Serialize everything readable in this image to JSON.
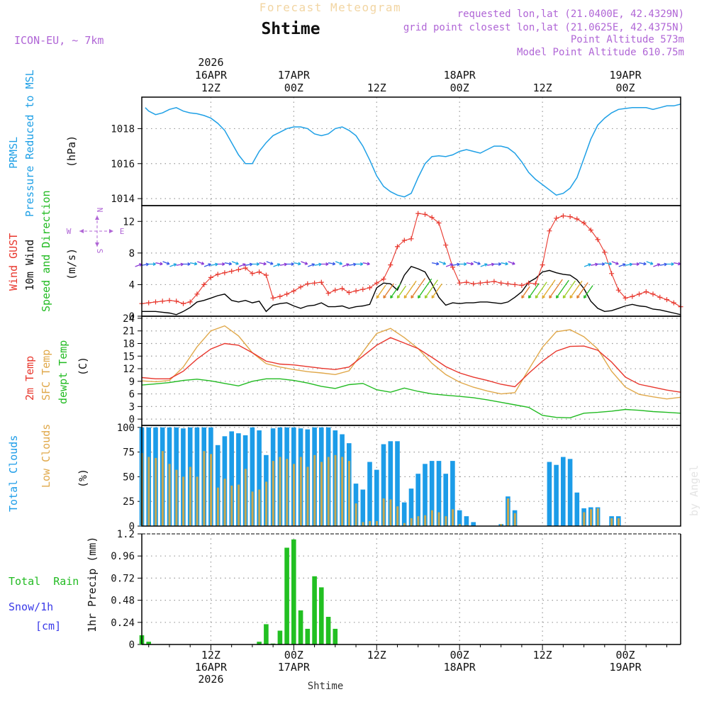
{
  "header": {
    "product_title": "Forecast Meteogram",
    "location": "Shtime",
    "model": "ICON-EU, ~ 7km",
    "requested": "requested lon,lat (21.0400E, 42.4329N)",
    "grid_point": "grid point closest lon,lat (21.0625E, 42.4375N)",
    "point_altitude": "Point Altitude 573m",
    "model_altitude": "Model Point Altitude 610.75m",
    "credit": "by Angel",
    "x_title": "Shtime"
  },
  "colors": {
    "pressure": "#1fa0e6",
    "gust": "#e8362c",
    "wind": "#000000",
    "t2m": "#e8362c",
    "sfc": "#e0a84a",
    "dewpt": "#22bb22",
    "total_cloud": "#1c9ce8",
    "low_cloud": "#c8a850",
    "rain": "#22c022",
    "snow": "#3a3ae8",
    "purple": "#b066d6"
  },
  "chart_data": {
    "type": "meteogram",
    "time_axis": {
      "unit": "hours since 2026-04-16 00Z",
      "range": [
        2,
        80
      ],
      "top_labels": [
        {
          "t": 12,
          "lines": [
            "2026",
            "16APR",
            "12Z"
          ]
        },
        {
          "t": 24,
          "lines": [
            "17APR",
            "00Z"
          ]
        },
        {
          "t": 36,
          "lines": [
            "12Z"
          ]
        },
        {
          "t": 48,
          "lines": [
            "18APR",
            "00Z"
          ]
        },
        {
          "t": 60,
          "lines": [
            "12Z"
          ]
        },
        {
          "t": 72,
          "lines": [
            "19APR",
            "00Z"
          ]
        }
      ],
      "bottom_labels": [
        {
          "t": 12,
          "lines": [
            "12Z",
            "16APR",
            "2026"
          ]
        },
        {
          "t": 24,
          "lines": [
            "00Z",
            "17APR"
          ]
        },
        {
          "t": 36,
          "lines": [
            "12Z"
          ]
        },
        {
          "t": 48,
          "lines": [
            "00Z",
            "18APR"
          ]
        },
        {
          "t": 60,
          "lines": [
            "12Z"
          ]
        },
        {
          "t": 72,
          "lines": [
            "00Z",
            "19APR"
          ]
        }
      ]
    },
    "panels": {
      "pressure": {
        "labels": [
          "PRMSL",
          "Pressure Reduced to MSL"
        ],
        "unit": "(hPa)",
        "ylim": [
          1013.6,
          1019.8
        ],
        "ticks": [
          1014,
          1016,
          1018
        ],
        "series": {
          "name": "PRMSL",
          "t": [
            2.5,
            3,
            4,
            5,
            6,
            7,
            8,
            9,
            10,
            11,
            12,
            13,
            14,
            15,
            16,
            17,
            18,
            19,
            20,
            21,
            22,
            23,
            24,
            25,
            26,
            27,
            28,
            29,
            30,
            31,
            32,
            33,
            34,
            35,
            36,
            37,
            38,
            39,
            40,
            41,
            42,
            43,
            44,
            45,
            46,
            47,
            48,
            49,
            50,
            51,
            52,
            53,
            54,
            55,
            56,
            57,
            58,
            59,
            60,
            61,
            62,
            63,
            64,
            65,
            66,
            67,
            68,
            69,
            70,
            71,
            72,
            73,
            74,
            75,
            76,
            77,
            78,
            79,
            80
          ],
          "values": [
            1019.2,
            1019.0,
            1018.8,
            1018.9,
            1019.1,
            1019.2,
            1019.0,
            1018.9,
            1018.85,
            1018.75,
            1018.6,
            1018.3,
            1017.9,
            1017.2,
            1016.5,
            1016.0,
            1016.0,
            1016.7,
            1017.2,
            1017.6,
            1017.8,
            1018.0,
            1018.1,
            1018.1,
            1018.0,
            1017.7,
            1017.6,
            1017.7,
            1018.0,
            1018.1,
            1017.9,
            1017.6,
            1017.0,
            1016.2,
            1015.3,
            1014.7,
            1014.4,
            1014.2,
            1014.1,
            1014.3,
            1015.2,
            1016.0,
            1016.4,
            1016.45,
            1016.4,
            1016.5,
            1016.7,
            1016.8,
            1016.7,
            1016.6,
            1016.8,
            1017.0,
            1017.0,
            1016.9,
            1016.6,
            1016.1,
            1015.5,
            1015.1,
            1014.8,
            1014.5,
            1014.2,
            1014.3,
            1014.6,
            1015.2,
            1016.3,
            1017.4,
            1018.2,
            1018.6,
            1018.9,
            1019.1,
            1019.15,
            1019.2,
            1019.2,
            1019.2,
            1019.1,
            1019.2,
            1019.3,
            1019.3,
            1019.4
          ]
        }
      },
      "wind": {
        "labels": [
          "Wind GUST",
          "10m Wind",
          "Speed and Direction"
        ],
        "unit": "(m/s)",
        "ylim": [
          0,
          14
        ],
        "ticks": [
          0,
          4,
          8,
          12
        ],
        "compass": {
          "n": "N",
          "s": "S",
          "e": "E",
          "w": "W"
        },
        "t": [
          2,
          3,
          4,
          5,
          6,
          7,
          8,
          9,
          10,
          11,
          12,
          13,
          14,
          15,
          16,
          17,
          18,
          19,
          20,
          21,
          22,
          23,
          24,
          25,
          26,
          27,
          28,
          29,
          30,
          31,
          32,
          33,
          34,
          35,
          36,
          37,
          38,
          39,
          40,
          41,
          42,
          43,
          44,
          45,
          46,
          47,
          48,
          49,
          50,
          51,
          52,
          53,
          54,
          55,
          56,
          57,
          58,
          59,
          60,
          61,
          62,
          63,
          64,
          65,
          66,
          67,
          68,
          69,
          70,
          71,
          72,
          73,
          74,
          75,
          76,
          77,
          78,
          79,
          80
        ],
        "gust": [
          1.6,
          1.7,
          1.8,
          1.9,
          2.0,
          1.9,
          1.6,
          1.8,
          2.8,
          4.0,
          4.9,
          5.3,
          5.5,
          5.7,
          5.9,
          6.1,
          5.4,
          5.6,
          5.2,
          2.3,
          2.5,
          2.8,
          3.2,
          3.7,
          4.1,
          4.2,
          4.3,
          2.9,
          3.3,
          3.5,
          3.0,
          3.2,
          3.4,
          3.6,
          4.2,
          4.7,
          6.5,
          8.8,
          9.6,
          9.8,
          13.0,
          12.9,
          12.5,
          11.8,
          9.0,
          6.2,
          4.2,
          4.3,
          4.1,
          4.2,
          4.3,
          4.4,
          4.2,
          4.1,
          4.0,
          3.9,
          4.2,
          4.1,
          6.5,
          10.8,
          12.4,
          12.7,
          12.6,
          12.3,
          11.8,
          10.9,
          9.7,
          8.1,
          5.4,
          3.3,
          2.3,
          2.5,
          2.8,
          3.1,
          2.8,
          2.4,
          2.1,
          1.7,
          1.2
        ],
        "speed": [
          0.6,
          0.6,
          0.6,
          0.5,
          0.4,
          0.2,
          0.6,
          1.1,
          1.8,
          2.0,
          2.3,
          2.6,
          2.8,
          2.0,
          1.8,
          2.0,
          1.7,
          1.9,
          0.6,
          1.4,
          1.6,
          1.7,
          1.3,
          1.0,
          1.3,
          1.4,
          1.7,
          1.2,
          1.2,
          1.3,
          1.0,
          1.2,
          1.3,
          1.5,
          3.6,
          4.2,
          4.1,
          3.3,
          5.2,
          6.3,
          6.0,
          5.6,
          4.1,
          2.4,
          1.4,
          1.7,
          1.6,
          1.7,
          1.7,
          1.8,
          1.8,
          1.7,
          1.6,
          1.8,
          2.4,
          3.1,
          4.3,
          4.8,
          5.6,
          5.8,
          5.5,
          5.3,
          5.2,
          4.6,
          3.5,
          1.9,
          1.0,
          0.6,
          0.7,
          1.0,
          1.3,
          1.5,
          1.3,
          1.2,
          0.9,
          0.8,
          0.6,
          0.4,
          0.2
        ]
      },
      "temperature": {
        "labels": [
          "2m Temp",
          "SFC Temp",
          "dewpt Temp"
        ],
        "unit": "(C)",
        "ylim": [
          -1.5,
          24.5
        ],
        "ticks": [
          0,
          3,
          6,
          9,
          12,
          15,
          18,
          21,
          24
        ],
        "t": [
          2,
          4,
          6,
          8,
          10,
          12,
          14,
          16,
          18,
          20,
          22,
          24,
          26,
          28,
          30,
          32,
          34,
          36,
          38,
          40,
          42,
          44,
          46,
          48,
          50,
          52,
          54,
          56,
          58,
          60,
          62,
          64,
          66,
          68,
          70,
          72,
          74,
          76,
          78,
          80
        ],
        "t2m": [
          9.9,
          9.6,
          9.6,
          11.4,
          14.3,
          16.7,
          18.0,
          17.6,
          15.8,
          13.8,
          13.1,
          12.9,
          12.5,
          12.1,
          11.8,
          12.4,
          15.0,
          17.6,
          19.4,
          18.1,
          16.8,
          14.7,
          12.5,
          11.0,
          10.0,
          9.2,
          8.3,
          7.7,
          10.9,
          13.8,
          16.2,
          17.3,
          17.4,
          16.4,
          13.6,
          10.0,
          8.3,
          7.6,
          6.9,
          6.4
        ],
        "sfc": [
          9.1,
          8.9,
          9.2,
          12.4,
          17.2,
          21.0,
          22.2,
          19.8,
          15.8,
          13.2,
          12.4,
          11.8,
          11.3,
          11.0,
          10.6,
          11.5,
          16.0,
          20.4,
          21.6,
          19.4,
          16.8,
          13.3,
          10.6,
          8.8,
          7.6,
          6.7,
          6.0,
          6.3,
          11.8,
          17.1,
          20.8,
          21.3,
          19.6,
          16.7,
          11.4,
          7.6,
          5.9,
          5.3,
          4.8,
          5.2
        ],
        "dewpt": [
          8.1,
          8.4,
          8.7,
          9.2,
          9.5,
          9.1,
          8.5,
          7.9,
          9.0,
          9.6,
          9.6,
          9.2,
          8.6,
          7.8,
          7.3,
          8.2,
          8.5,
          7.0,
          6.4,
          7.4,
          6.6,
          6.0,
          5.7,
          5.4,
          5.1,
          4.6,
          4.0,
          3.4,
          2.8,
          0.9,
          0.4,
          0.3,
          1.4,
          1.6,
          1.9,
          2.3,
          2.1,
          1.8,
          1.6,
          1.4
        ]
      },
      "clouds": {
        "labels": [
          "Total Clouds",
          "Low Clouds"
        ],
        "unit": "(%)",
        "ylim": [
          0,
          102
        ],
        "ticks": [
          0,
          25,
          50,
          75,
          100
        ],
        "t": [
          2,
          3,
          4,
          5,
          6,
          7,
          8,
          9,
          10,
          11,
          12,
          13,
          14,
          15,
          16,
          17,
          18,
          19,
          20,
          21,
          22,
          23,
          24,
          25,
          26,
          27,
          28,
          29,
          30,
          31,
          32,
          33,
          34,
          35,
          36,
          37,
          38,
          39,
          40,
          41,
          42,
          43,
          44,
          45,
          46,
          47,
          48,
          49,
          50,
          51,
          52,
          53,
          54,
          55,
          56,
          57,
          58,
          59,
          60,
          61,
          62,
          63,
          64,
          65,
          66,
          67,
          68,
          69,
          70,
          71,
          72,
          73,
          74,
          75,
          76,
          77,
          78,
          79,
          80
        ],
        "total": [
          100,
          100,
          100,
          100,
          100,
          100,
          99,
          100,
          100,
          100,
          100,
          82,
          91,
          96,
          94,
          92,
          100,
          97,
          72,
          99,
          100,
          100,
          100,
          99,
          98,
          100,
          100,
          100,
          97,
          93,
          84,
          43,
          37,
          65,
          57,
          83,
          86,
          86,
          24,
          38,
          53,
          63,
          66,
          66,
          53,
          66,
          16,
          10,
          4,
          0,
          0,
          0,
          2,
          30,
          16,
          0,
          0,
          0,
          0,
          65,
          62,
          70,
          68,
          34,
          18,
          19,
          19,
          0,
          10,
          10,
          0,
          0,
          0,
          0,
          0,
          0,
          0,
          0,
          0
        ],
        "low": [
          74,
          70,
          69,
          76,
          63,
          57,
          50,
          60,
          50,
          76,
          73,
          39,
          48,
          41,
          42,
          58,
          35,
          37,
          45,
          66,
          70,
          68,
          63,
          70,
          60,
          72,
          65,
          70,
          72,
          70,
          66,
          23,
          4,
          5,
          5,
          28,
          27,
          20,
          3,
          8,
          10,
          11,
          16,
          14,
          10,
          17,
          2,
          1,
          0,
          0,
          0,
          0,
          2,
          28,
          13,
          0,
          0,
          0,
          0,
          0,
          0,
          0,
          0,
          0,
          14,
          17,
          18,
          0,
          8,
          8,
          0,
          0,
          0,
          0,
          0,
          0,
          0,
          0,
          0
        ]
      },
      "precip": {
        "labels": [
          "Total  Rain",
          "Snow/1h",
          "[cm]"
        ],
        "unit": "1hr Precip (mm)",
        "ylim": [
          0,
          1.2
        ],
        "ticks": [
          0,
          0.24,
          0.48,
          0.72,
          0.96,
          1.2
        ],
        "t": [
          2,
          3,
          4,
          5,
          6,
          7,
          8,
          9,
          10,
          11,
          12,
          13,
          14,
          15,
          16,
          17,
          18,
          19,
          20,
          21,
          22,
          23,
          24,
          25,
          26,
          27,
          28,
          29,
          30,
          31,
          32,
          33,
          34,
          35,
          36,
          37,
          38,
          39,
          40,
          41,
          42,
          43,
          44,
          45,
          46,
          47,
          48,
          49,
          50,
          51,
          52,
          53,
          54,
          55,
          56,
          57,
          58,
          59,
          60,
          61,
          62,
          63,
          64,
          65,
          66,
          67,
          68,
          69,
          70,
          71,
          72,
          73,
          74,
          75,
          76,
          77,
          78,
          79,
          80
        ],
        "rain": [
          0.1,
          0.03,
          0,
          0,
          0,
          0,
          0,
          0,
          0,
          0,
          0,
          0,
          0,
          0,
          0,
          0,
          0,
          0.03,
          0.22,
          0.01,
          0.15,
          1.05,
          1.14,
          0.37,
          0.17,
          0.74,
          0.62,
          0.3,
          0.17,
          0,
          0,
          0,
          0,
          0,
          0,
          0,
          0,
          0,
          0,
          0,
          0,
          0,
          0,
          0,
          0,
          0,
          0,
          0,
          0,
          0,
          0,
          0,
          0,
          0,
          0,
          0,
          0,
          0,
          0,
          0,
          0,
          0,
          0,
          0,
          0,
          0,
          0,
          0,
          0,
          0,
          0,
          0,
          0,
          0,
          0,
          0,
          0,
          0,
          0
        ]
      }
    }
  }
}
